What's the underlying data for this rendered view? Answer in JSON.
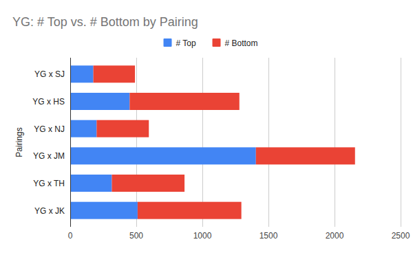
{
  "chart_data": {
    "type": "bar",
    "title": "YG: # Top vs. # Bottom by Pairing",
    "y_label": "Pairings",
    "orientation": "horizontal",
    "stacked": true,
    "grid": true,
    "legend": "top",
    "categories": [
      "YG x SJ",
      "YG x HS",
      "YG x NJ",
      "YG x JM",
      "YG x TH",
      "YG x JK"
    ],
    "series": [
      {
        "name": "# Top",
        "color": "#4285f4",
        "values": [
          175,
          450,
          200,
          1405,
          315,
          510
        ]
      },
      {
        "name": "# Bottom",
        "color": "#ea4335",
        "values": [
          315,
          830,
          395,
          750,
          550,
          785
        ]
      }
    ],
    "xlim": [
      0,
      2500
    ],
    "xticks": [
      0,
      500,
      1000,
      1500,
      2000,
      2500
    ]
  }
}
